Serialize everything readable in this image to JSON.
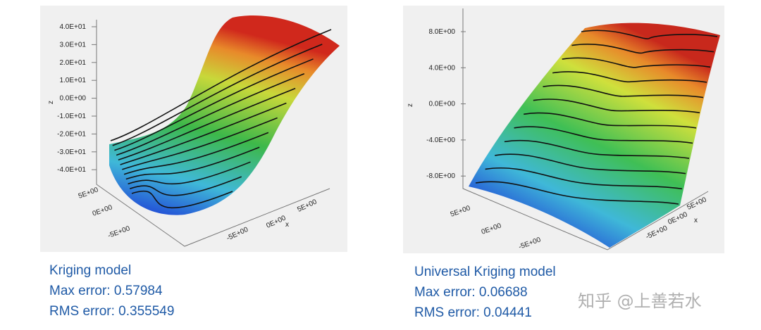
{
  "panels": [
    {
      "z_axis_label": "z",
      "z_ticks": [
        "4.0E+01",
        "3.0E+01",
        "2.0E+01",
        "1.0E+01",
        "0.0E+00",
        "-1.0E+01",
        "-2.0E+01",
        "-3.0E+01",
        "-4.0E+01"
      ],
      "y_ticks": [
        "5E+00",
        "0E+00",
        "-5E+00"
      ],
      "x_ticks": [
        "-5E+00",
        "0E+00",
        "5E+00"
      ],
      "x_axis_label": "x",
      "caption": {
        "title": "Kriging model",
        "max_error": "Max error: 0.57984",
        "rms_error": "RMS error: 0.355549"
      }
    },
    {
      "z_axis_label": "z",
      "z_ticks": [
        "8.0E+00",
        "4.0E+00",
        "0.0E+00",
        "-4.0E+00",
        "-8.0E+00"
      ],
      "y_ticks": [
        "5E+00",
        "0E+00",
        "-5E+00"
      ],
      "x_ticks": [
        "-5E+00",
        "0E+00",
        "5E+00"
      ],
      "x_axis_label": "x",
      "caption": {
        "title": "Universal Kriging model",
        "max_error": "Max error: 0.06688",
        "rms_error": "RMS error: 0.04441"
      }
    }
  ],
  "watermark": "知乎 @上善若水"
}
